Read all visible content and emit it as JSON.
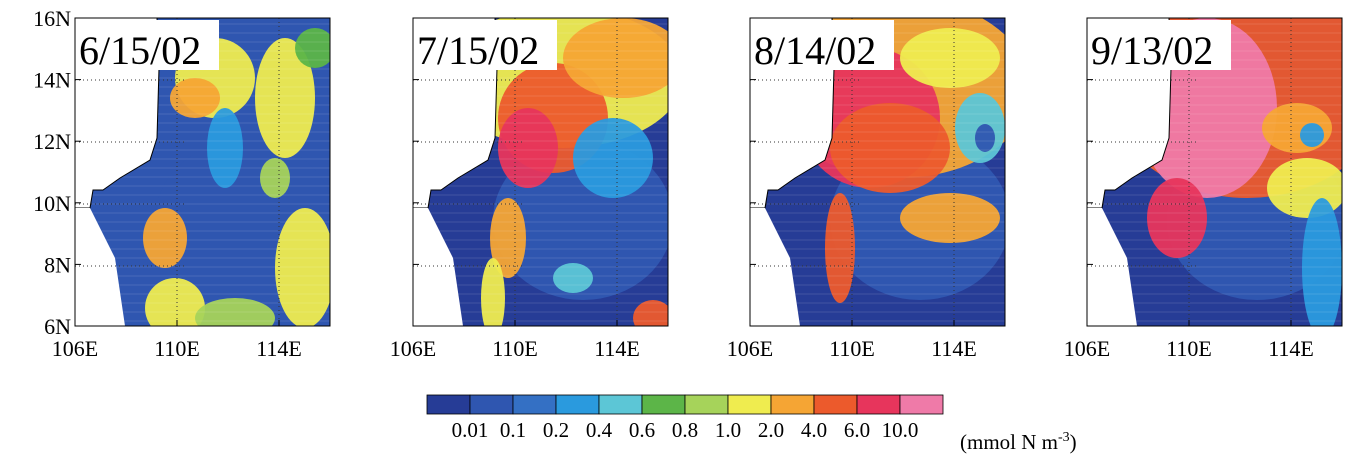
{
  "panels": [
    {
      "date": "6/15/02"
    },
    {
      "date": "7/15/02"
    },
    {
      "date": "8/14/02"
    },
    {
      "date": "9/13/02"
    }
  ],
  "lat_labels": [
    "16N",
    "14N",
    "12N",
    "10N",
    "8N",
    "6N"
  ],
  "lon_labels": [
    "106E",
    "110E",
    "114E"
  ],
  "colorbar": {
    "colors": [
      "#263c96",
      "#2f56b0",
      "#3470c4",
      "#2a9ade",
      "#5cc6d6",
      "#5cb548",
      "#a6d35a",
      "#efec4f",
      "#f5a534",
      "#ec5a2c",
      "#e7355c",
      "#ef7aa8"
    ],
    "labels": [
      "0.01",
      "0.1",
      "0.2",
      "0.4",
      "0.6",
      "0.8",
      "1.0",
      "2.0",
      "4.0",
      "6.0",
      "10.0"
    ],
    "unit": "(mmol N m",
    "unit_exp": "-3",
    "unit_end": ")"
  }
}
